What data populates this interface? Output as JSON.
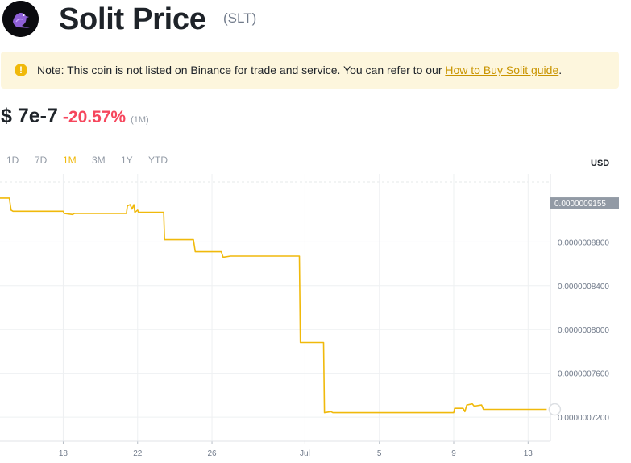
{
  "header": {
    "title": "Solit Price",
    "symbol": "(SLT)"
  },
  "notice": {
    "icon": "exclamation-icon",
    "text": "Note: This coin is not listed on Binance for trade and service. You can refer to our ",
    "link_label": "How to Buy Solit guide",
    "suffix": "."
  },
  "price": {
    "value": "$ 7e-7",
    "change": "-20.57%",
    "period": "(1M)"
  },
  "ranges": [
    {
      "label": "1D",
      "active": false
    },
    {
      "label": "7D",
      "active": false
    },
    {
      "label": "1M",
      "active": true
    },
    {
      "label": "3M",
      "active": false
    },
    {
      "label": "1Y",
      "active": false
    },
    {
      "label": "YTD",
      "active": false
    }
  ],
  "currency": "USD",
  "colors": {
    "line": "#f0b90b",
    "up": "#0ecb81",
    "down": "#f6465d",
    "price_tag_bg": "#929aa5"
  },
  "chart_data": {
    "type": "line",
    "x_ticks": [
      "18",
      "22",
      "26",
      "Jul",
      "5",
      "9",
      "13"
    ],
    "x_tick_days": [
      3,
      7,
      11,
      16,
      20,
      24,
      28
    ],
    "y_ticks": [
      "0.0000008800",
      "0.0000008400",
      "0.0000008000",
      "0.0000007600",
      "0.0000007200"
    ],
    "y_tick_values": [
      8.8e-07,
      8.4e-07,
      8e-07,
      7.6e-07,
      7.2e-07
    ],
    "ylim": [
      6.98e-07,
      9.42e-07
    ],
    "xlim": [
      -0.4,
      29.2
    ],
    "last_price_label": "0.0000009155",
    "last_price_value": 9.155e-07,
    "grid": true,
    "series": [
      {
        "x": [
          -0.4,
          0.1,
          0.2,
          0.3,
          1.0,
          1.5,
          3.0,
          3.05,
          3.5,
          3.6,
          6.4,
          6.45,
          6.6,
          6.7,
          6.8,
          6.85,
          7.0,
          7.05,
          7.3,
          7.5,
          8.0,
          8.4,
          8.45,
          9.0,
          10.0,
          10.1,
          11.0,
          11.05,
          11.5,
          11.6,
          12.0,
          12.1,
          15.7,
          15.75,
          16.0,
          17.0,
          17.05,
          17.4,
          17.5,
          17.6,
          24.0,
          24.05,
          24.5,
          24.6,
          24.7,
          25.0,
          25.1,
          25.5,
          25.6,
          29.0
        ],
        "y": [
          9.2e-07,
          9.2e-07,
          9.09e-07,
          9.08e-07,
          9.08e-07,
          9.08e-07,
          9.08e-07,
          9.06e-07,
          9.05e-07,
          9.06e-07,
          9.06e-07,
          9.13e-07,
          9.14e-07,
          9.1e-07,
          9.14e-07,
          9.07e-07,
          9.09e-07,
          9.07e-07,
          9.07e-07,
          9.07e-07,
          9.07e-07,
          9.07e-07,
          8.82e-07,
          8.82e-07,
          8.82e-07,
          8.71e-07,
          8.71e-07,
          8.71e-07,
          8.71e-07,
          8.66e-07,
          8.67e-07,
          8.67e-07,
          8.67e-07,
          7.88e-07,
          7.88e-07,
          7.88e-07,
          7.24e-07,
          7.25e-07,
          7.24e-07,
          7.24e-07,
          7.24e-07,
          7.28e-07,
          7.28e-07,
          7.25e-07,
          7.31e-07,
          7.32e-07,
          7.3e-07,
          7.31e-07,
          7.27e-07,
          7.27e-07
        ]
      }
    ]
  }
}
